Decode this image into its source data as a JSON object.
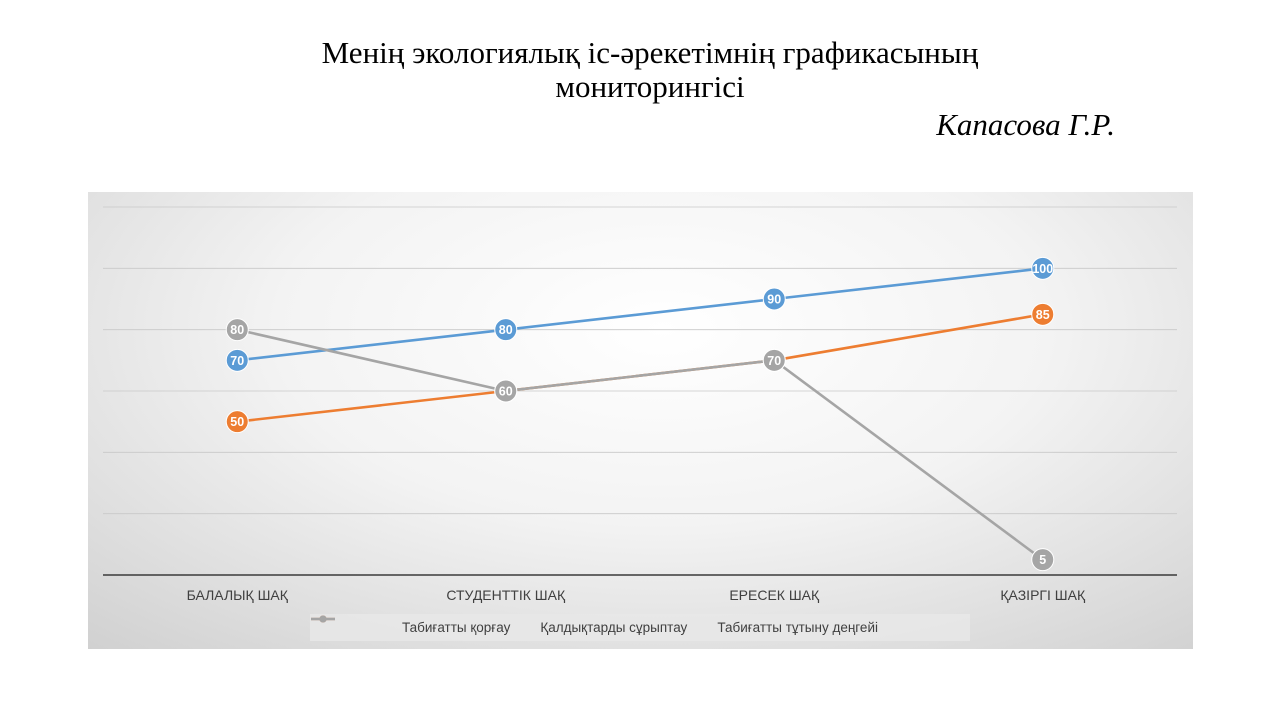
{
  "slide": {
    "title_line1": "Менің экологиялық іс-әрекетімнің графикасының",
    "title_line2": "мониторингісі",
    "author": "Капасова Г.Р."
  },
  "chart_data": {
    "type": "line",
    "categories": [
      "БАЛАЛЫҚ ШАҚ",
      "СТУДЕНТТІК ШАҚ",
      "ЕРЕСЕК ШАҚ",
      "ҚАЗІРГІ ШАҚ"
    ],
    "series": [
      {
        "name": "Табиғатты қорғау",
        "values": [
          70,
          80,
          90,
          100
        ],
        "color": "#5B9BD5"
      },
      {
        "name": "Қалдықтарды сұрыптау",
        "values": [
          50,
          60,
          70,
          85
        ],
        "color": "#ED7D31"
      },
      {
        "name": "Табиғатты тұтыну деңгейі",
        "values": [
          80,
          60,
          70,
          5
        ],
        "color": "#A5A5A5"
      }
    ],
    "ylim": [
      0,
      120
    ],
    "yticks": [
      20,
      40,
      60,
      80,
      100,
      120
    ],
    "grid": true,
    "data_labels": true,
    "legend": "bottom"
  }
}
